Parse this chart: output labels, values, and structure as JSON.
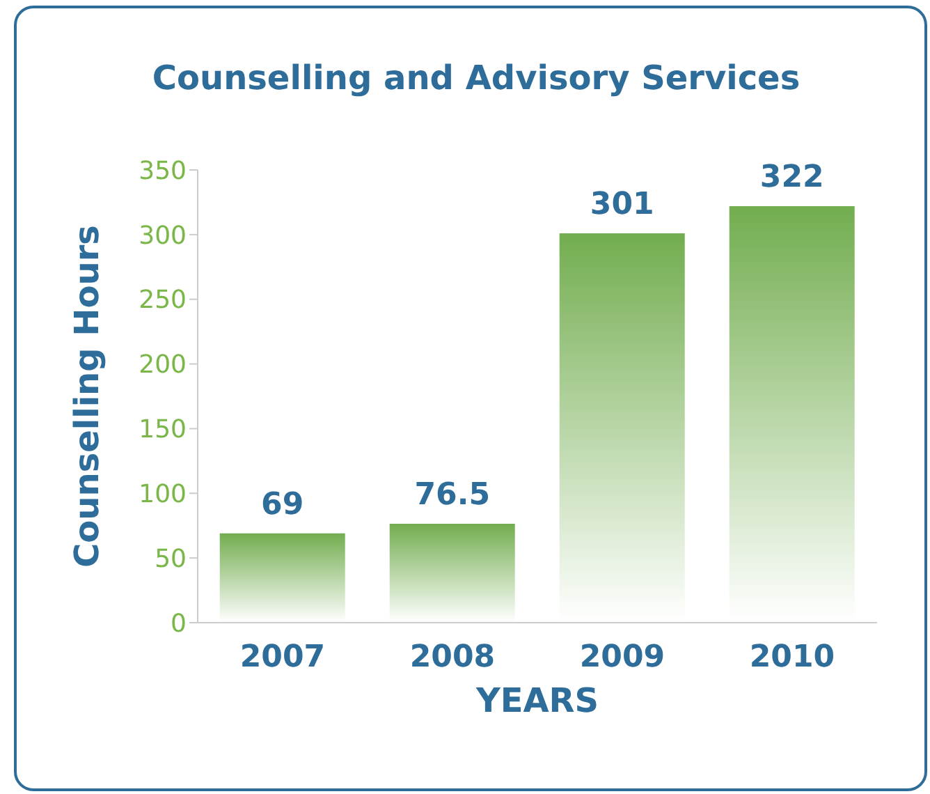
{
  "chart_data": {
    "type": "bar",
    "title": "Counselling and Advisory Services",
    "xlabel": "YEARS",
    "ylabel": "Counselling Hours",
    "categories": [
      "2007",
      "2008",
      "2009",
      "2010"
    ],
    "values": [
      69,
      76.5,
      301,
      322
    ],
    "color": "#72ad4f",
    "ylim": [
      0,
      350
    ],
    "yticks": [
      0,
      50,
      100,
      150,
      200,
      250,
      300,
      350
    ],
    "grid": false,
    "data_labels": true
  }
}
